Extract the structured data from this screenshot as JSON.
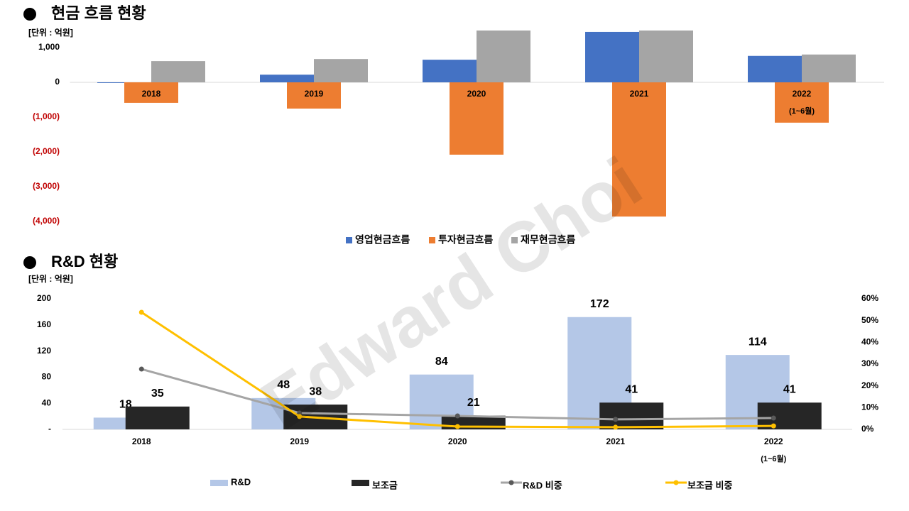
{
  "watermark": "Edward Choi",
  "chart_data": [
    {
      "type": "bar",
      "title": "현금 흐름 현황",
      "unit_label": "[단위 : 억원]",
      "categories": [
        "2018",
        "2019",
        "2020",
        "2021",
        "2022"
      ],
      "category_note": "(1~6월)",
      "series": [
        {
          "name": "영업현금흐름",
          "color": "#4472c4",
          "values": [
            -20,
            220,
            650,
            1450,
            760
          ]
        },
        {
          "name": "투자현금흐름",
          "color": "#ed7d31",
          "values": [
            -590,
            -755,
            -2080,
            -3860,
            -1160
          ]
        },
        {
          "name": "재무현금흐름",
          "color": "#a5a5a5",
          "values": [
            610,
            670,
            1490,
            1490,
            800
          ]
        }
      ],
      "ylim": [
        -4000,
        1500
      ],
      "yticks": [
        {
          "value": 1000,
          "label": "1,000"
        },
        0,
        {
          "value": -1000,
          "label": "(1,000)"
        },
        {
          "value": -2000,
          "label": "(2,000)"
        },
        {
          "value": -3000,
          "label": "(3,000)"
        },
        {
          "value": -4000,
          "label": "(4,000)"
        }
      ],
      "negative_tick_color": "#c00000",
      "legend": "bottom"
    },
    {
      "type": "combo",
      "title": "R&D 현황",
      "unit_label": "[단위 : 억원]",
      "categories": [
        "2018",
        "2019",
        "2020",
        "2021",
        "2022"
      ],
      "category_note": "(1~6월)",
      "series": [
        {
          "name": "R&D",
          "kind": "bar",
          "color": "#b4c7e7",
          "values": [
            18,
            48,
            84,
            172,
            114
          ]
        },
        {
          "name": "보조금",
          "kind": "bar",
          "color": "#262626",
          "values": [
            35,
            38,
            21,
            41,
            41
          ]
        },
        {
          "name": "R&D 비중",
          "kind": "line",
          "axis": "y2",
          "color": "#a5a5a5",
          "marker_color": "#595959",
          "values": [
            27.7,
            7.5,
            6.2,
            4.6,
            5.2
          ]
        },
        {
          "name": "보조금 비중",
          "kind": "line",
          "axis": "y2",
          "color": "#ffc000",
          "marker_color": "#ffc000",
          "values": [
            53.8,
            5.9,
            1.3,
            1.0,
            1.6
          ]
        }
      ],
      "ylim": [
        0,
        200
      ],
      "yticks": [
        {
          "value": 0,
          "label": "-"
        },
        40,
        80,
        120,
        160,
        200
      ],
      "y2lim": [
        0,
        60
      ],
      "y2ticks": [
        {
          "value": 0,
          "label": "0%"
        },
        {
          "value": 10,
          "label": "10%"
        },
        {
          "value": 20,
          "label": "20%"
        },
        {
          "value": 30,
          "label": "30%"
        },
        {
          "value": 40,
          "label": "40%"
        },
        {
          "value": 50,
          "label": "50%"
        },
        {
          "value": 60,
          "label": "60%"
        }
      ],
      "legend": "bottom"
    }
  ]
}
